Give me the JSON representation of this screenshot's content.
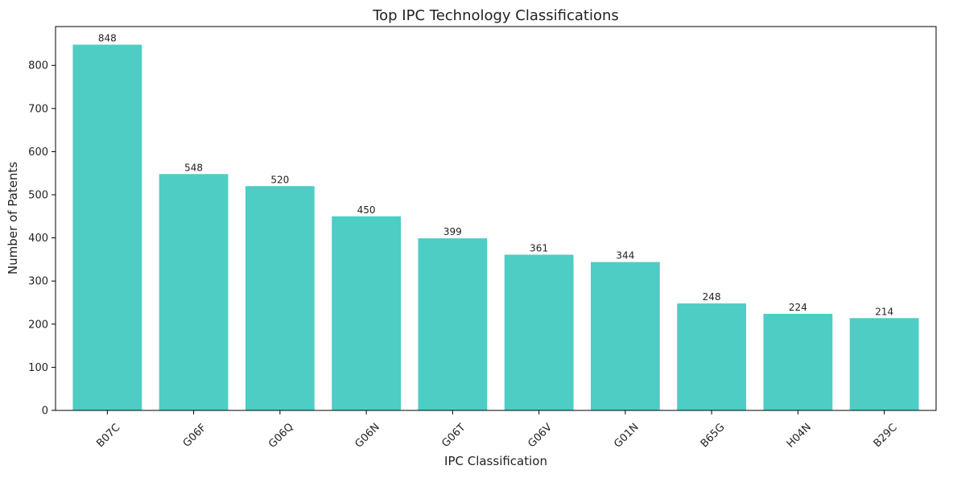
{
  "chart_data": {
    "type": "bar",
    "title": "Top IPC Technology Classifications",
    "xlabel": "IPC Classification",
    "ylabel": "Number of Patents",
    "categories": [
      "B07C",
      "G06F",
      "G06Q",
      "G06N",
      "G06T",
      "G06V",
      "G01N",
      "B65G",
      "H04N",
      "B29C"
    ],
    "values": [
      848,
      548,
      520,
      450,
      399,
      361,
      344,
      248,
      224,
      214
    ],
    "ylim": [
      0,
      890
    ],
    "yticks": [
      0,
      100,
      200,
      300,
      400,
      500,
      600,
      700,
      800
    ],
    "grid": false,
    "legend": "none",
    "bar_color": "#4ecdc4",
    "x_tick_rotation_deg": 45
  }
}
